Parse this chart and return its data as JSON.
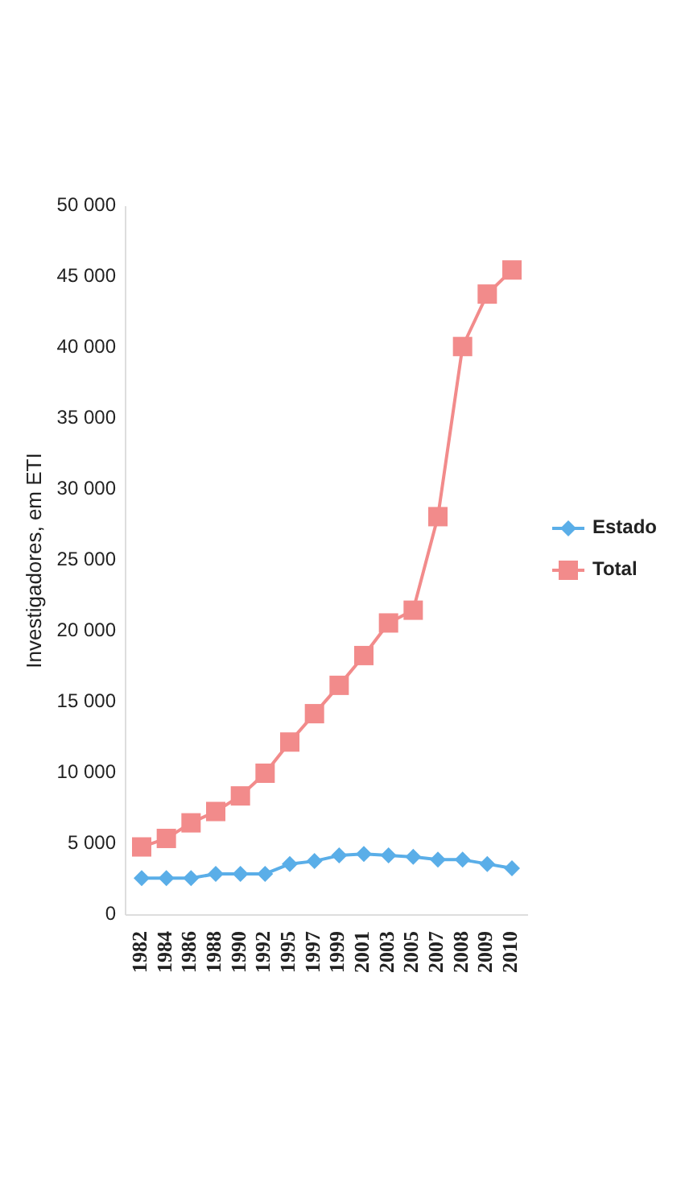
{
  "chart_data": {
    "type": "line",
    "ylabel": "Investigadores, em ETI",
    "categories": [
      "1982",
      "1984",
      "1986",
      "1988",
      "1990",
      "1992",
      "1995",
      "1997",
      "1999",
      "2001",
      "2003",
      "2005",
      "2007",
      "2008",
      "2009",
      "2010"
    ],
    "series": [
      {
        "name": "Estado",
        "color": "#5aaee8",
        "marker": "diamond",
        "values": [
          2600,
          2600,
          2600,
          2900,
          2900,
          2900,
          3600,
          3800,
          4200,
          4300,
          4200,
          4100,
          3900,
          3900,
          3600,
          3300
        ]
      },
      {
        "name": "Total",
        "color": "#f28b8b",
        "marker": "square",
        "values": [
          4800,
          5400,
          6500,
          7300,
          8400,
          10000,
          12200,
          14200,
          16200,
          18300,
          20600,
          21500,
          28100,
          40100,
          43800,
          45500
        ]
      }
    ],
    "ylim": [
      0,
      50000
    ],
    "yticks": [
      0,
      {
        "value": 5000,
        "label": "5 000"
      },
      {
        "value": 10000,
        "label": "10 000"
      },
      {
        "value": 15000,
        "label": "15 000"
      },
      {
        "value": 20000,
        "label": "20 000"
      },
      {
        "value": 25000,
        "label": "25 000"
      },
      {
        "value": 30000,
        "label": "30 000"
      },
      {
        "value": 35000,
        "label": "35 000"
      },
      {
        "value": 40000,
        "label": "40 000"
      },
      {
        "value": 45000,
        "label": "45 000"
      },
      {
        "value": 50000,
        "label": "50 000"
      }
    ],
    "grid": false,
    "legend": "right"
  }
}
